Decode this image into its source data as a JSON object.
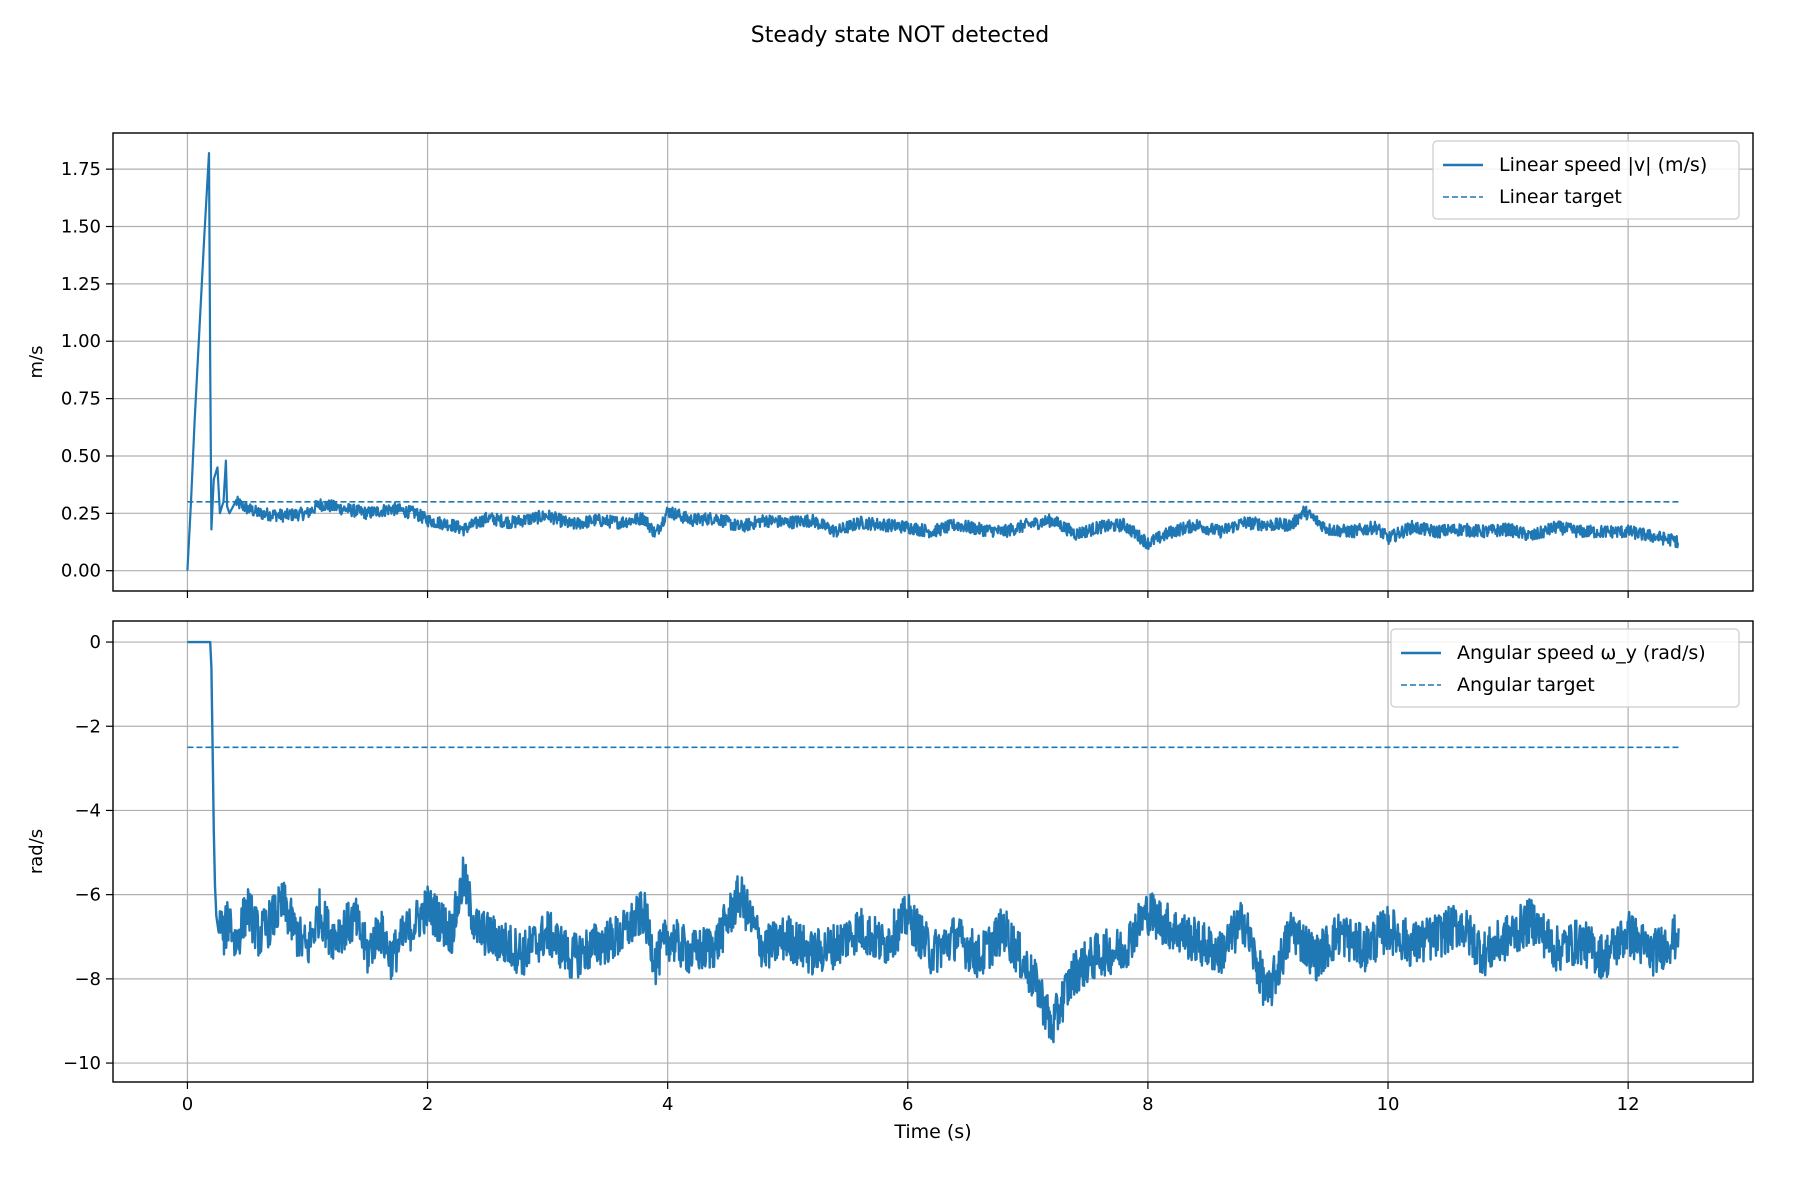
{
  "figure": {
    "suptitle": "Steady state NOT detected"
  },
  "colors": {
    "series": "#1f77b4",
    "grid": "#b0b0b0",
    "axis": "#000000",
    "legend_border": "#cccccc"
  },
  "chart_data": [
    {
      "type": "line",
      "xlabel": "",
      "ylabel": "m/s",
      "xlim": [
        -0.62,
        13.04
      ],
      "ylim": [
        -0.0885,
        1.9075
      ],
      "xticks": [
        0,
        2,
        4,
        6,
        8,
        10,
        12
      ],
      "yticks": [
        0.0,
        0.25,
        0.5,
        0.75,
        1.0,
        1.25,
        1.5,
        1.75
      ],
      "ytick_labels": [
        "0.00",
        "0.25",
        "0.50",
        "0.75",
        "1.00",
        "1.25",
        "1.50",
        "1.75"
      ],
      "grid": true,
      "legend_position": "top-right",
      "series": [
        {
          "name": "Linear speed |v| (m/s)",
          "style": "solid",
          "x": [
            0,
            0.03,
            0.06,
            0.1,
            0.14,
            0.18,
            0.19,
            0.2,
            0.22,
            0.25,
            0.27,
            0.3,
            0.32,
            0.33,
            0.35,
            0.4,
            0.5,
            0.6,
            0.8,
            1.0,
            1.1,
            1.3,
            1.5,
            1.7,
            1.9,
            2.0,
            2.2,
            2.3,
            2.5,
            2.7,
            3.0,
            3.2,
            3.4,
            3.6,
            3.8,
            3.9,
            4.0,
            4.2,
            4.4,
            4.6,
            4.8,
            5.0,
            5.2,
            5.4,
            5.6,
            5.8,
            6.0,
            6.2,
            6.4,
            6.6,
            6.8,
            7.0,
            7.2,
            7.4,
            7.6,
            7.8,
            8.0,
            8.2,
            8.4,
            8.6,
            8.8,
            9.0,
            9.2,
            9.3,
            9.5,
            9.7,
            9.9,
            10.0,
            10.2,
            10.4,
            10.6,
            10.8,
            11.0,
            11.2,
            11.4,
            11.6,
            11.8,
            12.0,
            12.2,
            12.4,
            12.42
          ],
          "y": [
            0.0,
            0.3,
            0.65,
            1.05,
            1.45,
            1.82,
            0.9,
            0.18,
            0.4,
            0.45,
            0.25,
            0.3,
            0.48,
            0.28,
            0.25,
            0.3,
            0.27,
            0.25,
            0.24,
            0.25,
            0.29,
            0.27,
            0.25,
            0.27,
            0.25,
            0.22,
            0.2,
            0.18,
            0.23,
            0.21,
            0.24,
            0.2,
            0.22,
            0.21,
            0.23,
            0.16,
            0.26,
            0.22,
            0.23,
            0.19,
            0.22,
            0.21,
            0.22,
            0.17,
            0.21,
            0.2,
            0.19,
            0.17,
            0.2,
            0.18,
            0.17,
            0.2,
            0.22,
            0.16,
            0.19,
            0.2,
            0.12,
            0.17,
            0.2,
            0.17,
            0.21,
            0.2,
            0.2,
            0.26,
            0.18,
            0.17,
            0.19,
            0.14,
            0.19,
            0.17,
            0.18,
            0.17,
            0.18,
            0.15,
            0.19,
            0.17,
            0.17,
            0.17,
            0.15,
            0.13,
            0.12
          ]
        },
        {
          "name": "Linear target",
          "style": "dashed",
          "x": [
            0,
            12.42
          ],
          "y": [
            0.3,
            0.3
          ]
        }
      ]
    },
    {
      "type": "line",
      "xlabel": "Time (s)",
      "ylabel": "rad/s",
      "xlim": [
        -0.62,
        13.04
      ],
      "ylim": [
        -10.45,
        0.5
      ],
      "xticks": [
        0,
        2,
        4,
        6,
        8,
        10,
        12
      ],
      "xtick_labels": [
        "0",
        "2",
        "4",
        "6",
        "8",
        "10",
        "12"
      ],
      "yticks": [
        0,
        -2,
        -4,
        -6,
        -8,
        -10
      ],
      "ytick_labels": [
        "0",
        "−2",
        "−4",
        "−6",
        "−8",
        "−10"
      ],
      "grid": true,
      "legend_position": "top-right",
      "series": [
        {
          "name": "Angular speed ω_y (rad/s)",
          "style": "solid",
          "x": [
            0,
            0.1,
            0.19,
            0.2,
            0.21,
            0.22,
            0.23,
            0.24,
            0.26,
            0.28,
            0.3,
            0.35,
            0.4,
            0.5,
            0.6,
            0.8,
            0.9,
            1.0,
            1.1,
            1.2,
            1.4,
            1.5,
            1.6,
            1.7,
            1.8,
            2.0,
            2.2,
            2.3,
            2.4,
            2.6,
            2.8,
            3.0,
            3.2,
            3.4,
            3.6,
            3.8,
            3.9,
            4.0,
            4.2,
            4.4,
            4.6,
            4.8,
            5.0,
            5.2,
            5.4,
            5.6,
            5.8,
            6.0,
            6.2,
            6.4,
            6.6,
            6.8,
            7.0,
            7.1,
            7.2,
            7.3,
            7.4,
            7.6,
            7.8,
            7.9,
            8.0,
            8.2,
            8.4,
            8.6,
            8.8,
            8.9,
            9.0,
            9.2,
            9.4,
            9.6,
            9.8,
            10.0,
            10.2,
            10.4,
            10.6,
            10.8,
            11.0,
            11.2,
            11.4,
            11.6,
            11.8,
            12.0,
            12.2,
            12.4,
            12.42
          ],
          "y": [
            0,
            0,
            0,
            -0.6,
            -2.5,
            -4.5,
            -5.8,
            -6.5,
            -6.9,
            -6.6,
            -7.0,
            -6.5,
            -7.2,
            -6.3,
            -7.0,
            -6.2,
            -6.9,
            -7.3,
            -6.4,
            -7.0,
            -6.6,
            -7.4,
            -6.8,
            -7.5,
            -7.0,
            -6.3,
            -6.9,
            -5.6,
            -6.8,
            -7.1,
            -7.4,
            -6.9,
            -7.5,
            -7.2,
            -7.0,
            -6.4,
            -7.6,
            -7.0,
            -7.4,
            -7.2,
            -6.0,
            -7.3,
            -7.0,
            -7.4,
            -7.2,
            -6.8,
            -7.2,
            -6.5,
            -7.4,
            -7.0,
            -7.5,
            -6.8,
            -7.8,
            -8.3,
            -9.2,
            -8.4,
            -7.8,
            -7.4,
            -7.3,
            -6.8,
            -6.4,
            -6.8,
            -7.1,
            -7.4,
            -6.6,
            -7.6,
            -8.4,
            -6.8,
            -7.5,
            -6.9,
            -7.3,
            -6.8,
            -7.2,
            -7.0,
            -6.7,
            -7.4,
            -7.0,
            -6.6,
            -7.3,
            -7.1,
            -7.5,
            -6.9,
            -7.4,
            -7.0,
            -6.8
          ]
        },
        {
          "name": "Angular target",
          "style": "dashed",
          "x": [
            0,
            12.42
          ],
          "y": [
            -2.5,
            -2.5
          ]
        }
      ]
    }
  ]
}
